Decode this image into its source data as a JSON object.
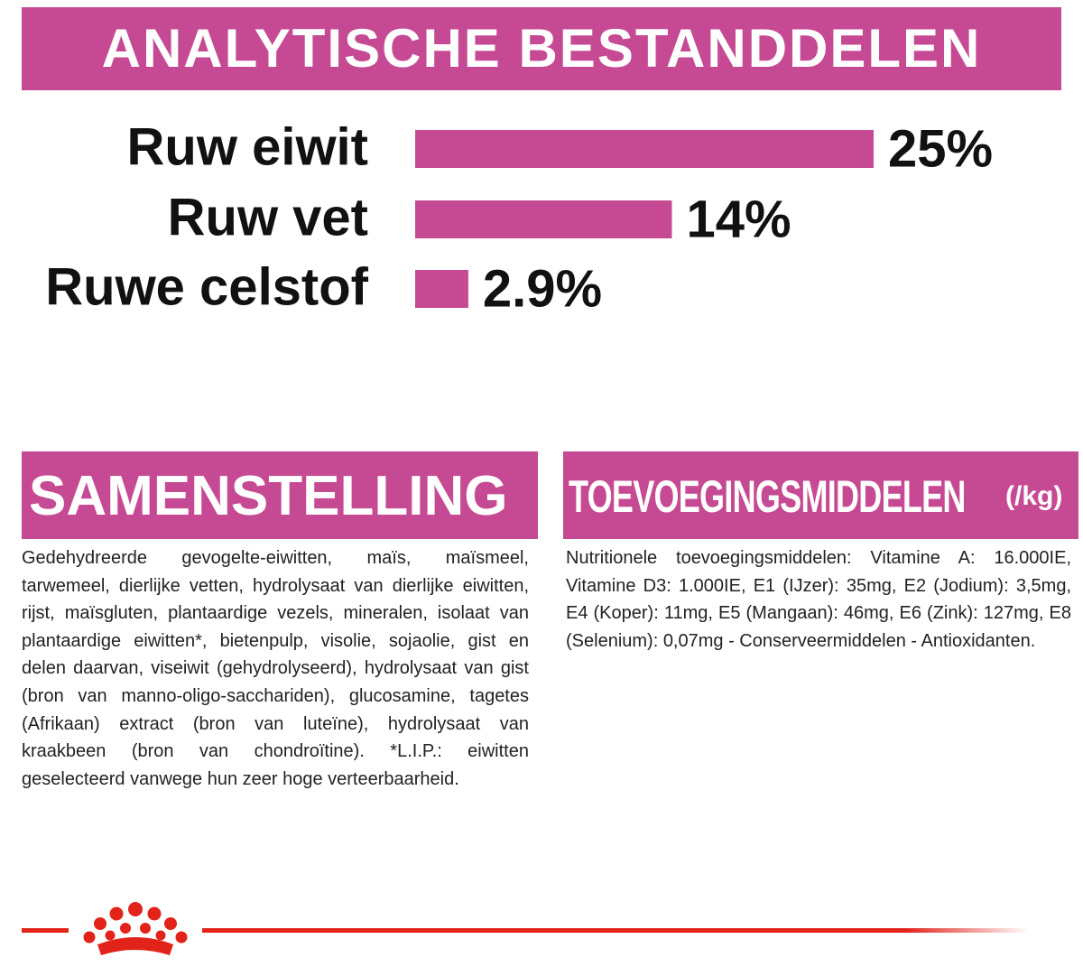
{
  "chart_data": {
    "type": "bar",
    "orientation": "horizontal",
    "title": "ANALYTISCHE BESTANDDELEN",
    "categories": [
      "Ruw eiwit",
      "Ruw vet",
      "Ruwe celstof"
    ],
    "values": [
      25,
      14,
      2.9
    ],
    "value_labels": [
      "25%",
      "14%",
      "2.9%"
    ],
    "color": "#c64a93"
  },
  "composition": {
    "title": "SAMENSTELLING",
    "text": "Gedehydreerde gevogelte-eiwitten, maïs, maïsmeel, tarwemeel, dierlijke vetten, hydrolysaat van dierlijke eiwitten, rijst, maïsgluten, plantaardige vezels, mineralen, isolaat van plantaardige eiwitten*, bietenpulp, visolie, sojaolie, gist en delen daarvan, viseiwit (gehydrolyseerd), hydrolysaat van gist (bron van manno-oligo-sacchariden), glucosamine, tagetes (Afrikaan) extract (bron van luteïne), hydrolysaat van kraakbeen (bron van chondroïtine). *L.I.P.: eiwitten geselecteerd vanwege hun zeer hoge verteerbaarheid."
  },
  "additives": {
    "title": "TOEVOEGINGSMIDDELEN",
    "unit": "(/kg)",
    "text": "Nutritionele toevoegingsmiddelen: Vitamine A: 16.000IE, Vitamine D3: 1.000IE, E1 (IJzer): 35mg, E2 (Jodium): 3,5mg, E4 (Koper): 11mg, E5 (Mangaan): 46mg, E6 (Zink): 127mg, E8 (Selenium): 0,07mg - Conserveermiddelen - Antioxidanten."
  }
}
